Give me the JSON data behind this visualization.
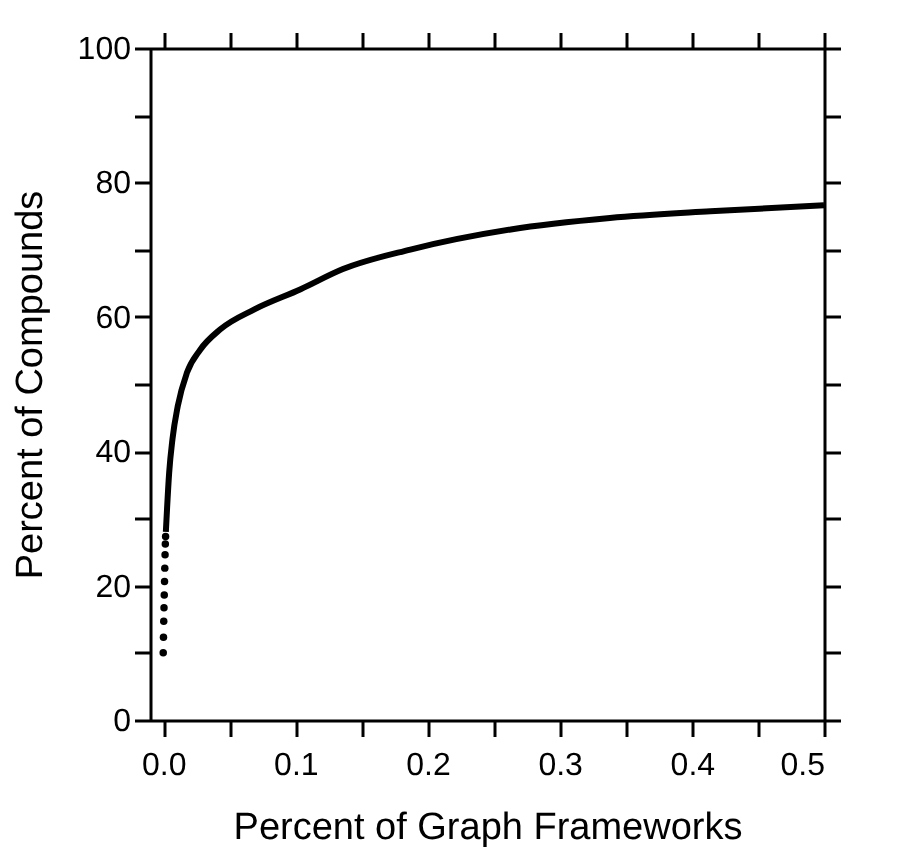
{
  "chart_data": {
    "type": "line",
    "xlabel": "Percent of Graph Frameworks",
    "ylabel": "Percent of Compounds",
    "xlim": [
      -0.01,
      0.5
    ],
    "ylim": [
      0,
      100
    ],
    "xticks": [
      {
        "value": 0,
        "label": "0.0"
      },
      {
        "value": 0.05,
        "label": null
      },
      0.1,
      {
        "value": 0.15,
        "label": null
      },
      0.2,
      {
        "value": 0.25,
        "label": null
      },
      0.3,
      {
        "value": 0.35,
        "label": null
      },
      0.4,
      {
        "value": 0.45,
        "label": null
      },
      0.5
    ],
    "yticks": [
      0,
      {
        "value": 10,
        "label": null
      },
      20,
      {
        "value": 30,
        "label": null
      },
      40,
      {
        "value": 50,
        "label": null
      },
      60,
      {
        "value": 70,
        "label": null
      },
      80,
      {
        "value": 90,
        "label": null
      },
      100
    ],
    "grid": false,
    "series": [
      {
        "type": "scatter",
        "color": "#000000",
        "marker": "circle",
        "x": [
          0,
          0.0002,
          0.0004,
          0.0006,
          0.0008,
          0.001,
          0.0012,
          0.0014,
          0.0016,
          0.0018
        ],
        "values": [
          10,
          12.3,
          14.7,
          16.7,
          18.6,
          20.6,
          22.6,
          24.6,
          26.2,
          27.3
        ]
      },
      {
        "type": "line",
        "color": "#000000",
        "line_style": "solid",
        "x": [
          0.002,
          0.0045,
          0.007,
          0.011,
          0.018,
          0.028,
          0.043,
          0.069,
          0.104,
          0.136,
          0.187,
          0.263,
          0.338,
          0.414,
          0.5
        ],
        "values": [
          28,
          36.8,
          41.8,
          46.7,
          51.7,
          55.1,
          58.1,
          61.1,
          64.1,
          67.1,
          70.0,
          73.0,
          74.7,
          75.7,
          76.6
        ]
      }
    ]
  }
}
